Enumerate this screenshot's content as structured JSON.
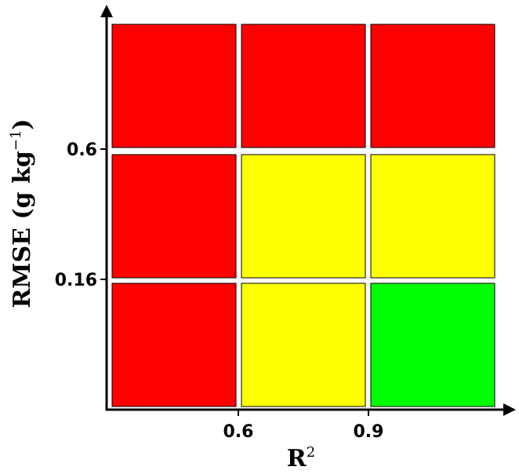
{
  "x_axis": {
    "label": {
      "base": "R",
      "superscript": "2"
    },
    "ticks": [
      "0.6",
      "0.9"
    ]
  },
  "y_axis": {
    "label": {
      "base": "RMSE (g kg",
      "superscript": "−1",
      "close": ")"
    },
    "ticks": [
      "0.6",
      "0.16"
    ]
  },
  "cells": [
    [
      "#ff0000",
      "#ff0000",
      "#ff0000"
    ],
    [
      "#ff0000",
      "#ffff00",
      "#ffff00"
    ],
    [
      "#ff0000",
      "#ffff00",
      "#00ff00"
    ]
  ]
}
